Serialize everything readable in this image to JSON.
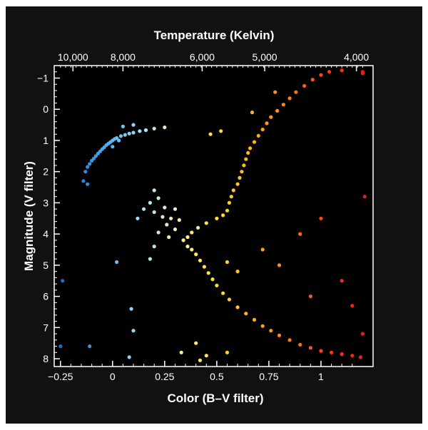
{
  "chart_data": {
    "type": "scatter",
    "title": "",
    "x_axis_top": {
      "label": "Temperature (Kelvin)",
      "ticks": [
        {
          "label": "10,000",
          "at_color": -0.19
        },
        {
          "label": "8,000",
          "at_color": 0.05
        },
        {
          "label": "6,000",
          "at_color": 0.43
        },
        {
          "label": "5,000",
          "at_color": 0.73
        },
        {
          "label": "4,000",
          "at_color": 1.17
        }
      ]
    },
    "x_axis": {
      "label": "Color (B–V filter)",
      "ticks": [
        {
          "value": -0.25,
          "label": "−0.25"
        },
        {
          "value": 0,
          "label": "0"
        },
        {
          "value": 0.25,
          "label": "0.25"
        },
        {
          "value": 0.5,
          "label": "0.5"
        },
        {
          "value": 0.75,
          "label": "0.75"
        },
        {
          "value": 1,
          "label": "1"
        }
      ],
      "range": [
        -0.28,
        1.25
      ]
    },
    "y_axis": {
      "label": "Magnitude (V filter)",
      "inverted": true,
      "ticks": [
        {
          "value": -1,
          "label": "−1"
        },
        {
          "value": 0,
          "label": "0"
        },
        {
          "value": 1,
          "label": "1"
        },
        {
          "value": 2,
          "label": "2"
        },
        {
          "value": 3,
          "label": "3"
        },
        {
          "value": 4,
          "label": "4"
        },
        {
          "value": 5,
          "label": "5"
        },
        {
          "value": 6,
          "label": "6"
        },
        {
          "value": 7,
          "label": "7"
        },
        {
          "value": 8,
          "label": "8"
        }
      ],
      "range": [
        -1.4,
        8.25
      ]
    },
    "grid": false,
    "background": "#000000",
    "color_scale": [
      "#1f6fd1",
      "#4fb0f0",
      "#a8e6ff",
      "#fff0a0",
      "#ffe030",
      "#ffb020",
      "#ff7a20",
      "#ff3a20",
      "#e8201a"
    ],
    "series": [
      {
        "name": "",
        "points": [
          [
            -0.12,
            1.85
          ],
          [
            -0.11,
            1.75
          ],
          [
            -0.1,
            1.65
          ],
          [
            -0.09,
            1.58
          ],
          [
            -0.08,
            1.5
          ],
          [
            -0.07,
            1.42
          ],
          [
            -0.06,
            1.35
          ],
          [
            -0.05,
            1.28
          ],
          [
            -0.04,
            1.22
          ],
          [
            -0.03,
            1.15
          ],
          [
            -0.02,
            1.1
          ],
          [
            -0.01,
            1.05
          ],
          [
            0.0,
            1.0
          ],
          [
            0.01,
            0.95
          ],
          [
            0.02,
            0.92
          ],
          [
            0.04,
            0.86
          ],
          [
            0.06,
            0.82
          ],
          [
            0.08,
            0.78
          ],
          [
            0.1,
            0.75
          ],
          [
            0.13,
            0.7
          ],
          [
            0.16,
            0.67
          ],
          [
            0.2,
            0.62
          ],
          [
            0.25,
            0.58
          ],
          [
            0.05,
            0.55
          ],
          [
            0.1,
            0.5
          ],
          [
            -0.13,
            2.0
          ],
          [
            -0.14,
            2.3
          ],
          [
            -0.12,
            2.4
          ],
          [
            0.0,
            1.2
          ],
          [
            0.03,
            1.0
          ],
          [
            0.2,
            2.6
          ],
          [
            0.22,
            2.85
          ],
          [
            0.18,
            3.0
          ],
          [
            0.25,
            3.15
          ],
          [
            0.2,
            3.3
          ],
          [
            0.24,
            3.45
          ],
          [
            0.28,
            3.5
          ],
          [
            0.26,
            3.7
          ],
          [
            0.3,
            3.85
          ],
          [
            0.22,
            3.95
          ],
          [
            0.15,
            3.2
          ],
          [
            0.12,
            3.5
          ],
          [
            0.3,
            3.2
          ],
          [
            0.32,
            3.55
          ],
          [
            0.27,
            4.1
          ],
          [
            0.2,
            4.4
          ],
          [
            0.18,
            4.8
          ],
          [
            0.34,
            4.2
          ],
          [
            0.36,
            4.4
          ],
          [
            0.38,
            4.5
          ],
          [
            0.4,
            4.65
          ],
          [
            0.42,
            4.85
          ],
          [
            0.44,
            5.05
          ],
          [
            0.46,
            5.25
          ],
          [
            0.48,
            5.45
          ],
          [
            0.5,
            5.65
          ],
          [
            0.53,
            5.9
          ],
          [
            0.56,
            6.1
          ],
          [
            0.6,
            6.35
          ],
          [
            0.64,
            6.55
          ],
          [
            0.68,
            6.75
          ],
          [
            0.72,
            6.95
          ],
          [
            0.76,
            7.1
          ],
          [
            0.8,
            7.25
          ],
          [
            0.85,
            7.4
          ],
          [
            0.9,
            7.55
          ],
          [
            0.95,
            7.65
          ],
          [
            1.0,
            7.75
          ],
          [
            1.05,
            7.8
          ],
          [
            1.1,
            7.85
          ],
          [
            1.15,
            7.9
          ],
          [
            1.19,
            7.95
          ],
          [
            0.36,
            4.1
          ],
          [
            0.38,
            3.95
          ],
          [
            0.41,
            3.8
          ],
          [
            0.45,
            3.65
          ],
          [
            0.5,
            3.5
          ],
          [
            0.53,
            3.4
          ],
          [
            0.55,
            3.25
          ],
          [
            0.56,
            3.0
          ],
          [
            0.57,
            2.8
          ],
          [
            0.58,
            2.6
          ],
          [
            0.6,
            2.4
          ],
          [
            0.61,
            2.2
          ],
          [
            0.62,
            2.0
          ],
          [
            0.63,
            1.8
          ],
          [
            0.64,
            1.6
          ],
          [
            0.65,
            1.4
          ],
          [
            0.66,
            1.25
          ],
          [
            0.68,
            1.05
          ],
          [
            0.7,
            0.85
          ],
          [
            0.72,
            0.65
          ],
          [
            0.74,
            0.45
          ],
          [
            0.76,
            0.25
          ],
          [
            0.79,
            0.05
          ],
          [
            0.82,
            -0.15
          ],
          [
            0.85,
            -0.35
          ],
          [
            0.88,
            -0.55
          ],
          [
            0.92,
            -0.75
          ],
          [
            0.96,
            -0.95
          ],
          [
            1.0,
            -1.1
          ],
          [
            1.04,
            -1.2
          ],
          [
            1.1,
            -1.25
          ],
          [
            1.2,
            -1.2
          ],
          [
            0.52,
            0.7
          ],
          [
            0.47,
            0.8
          ],
          [
            0.67,
            0.1
          ],
          [
            0.78,
            -0.55
          ],
          [
            0.72,
            4.5
          ],
          [
            0.8,
            5.0
          ],
          [
            0.9,
            4.0
          ],
          [
            1.0,
            3.5
          ],
          [
            0.95,
            6.0
          ],
          [
            1.1,
            5.5
          ],
          [
            1.15,
            6.3
          ],
          [
            1.2,
            7.2
          ],
          [
            1.21,
            2.8
          ],
          [
            1.2,
            -1.15
          ],
          [
            0.6,
            5.2
          ],
          [
            0.55,
            4.9
          ],
          [
            -0.24,
            5.5
          ],
          [
            -0.25,
            7.6
          ],
          [
            -0.11,
            7.6
          ],
          [
            0.09,
            6.4
          ],
          [
            0.1,
            7.1
          ],
          [
            0.02,
            4.9
          ],
          [
            0.4,
            7.5
          ],
          [
            0.45,
            7.9
          ],
          [
            0.55,
            7.8
          ],
          [
            0.42,
            8.05
          ],
          [
            0.08,
            7.95
          ],
          [
            0.33,
            7.8
          ]
        ]
      }
    ]
  }
}
